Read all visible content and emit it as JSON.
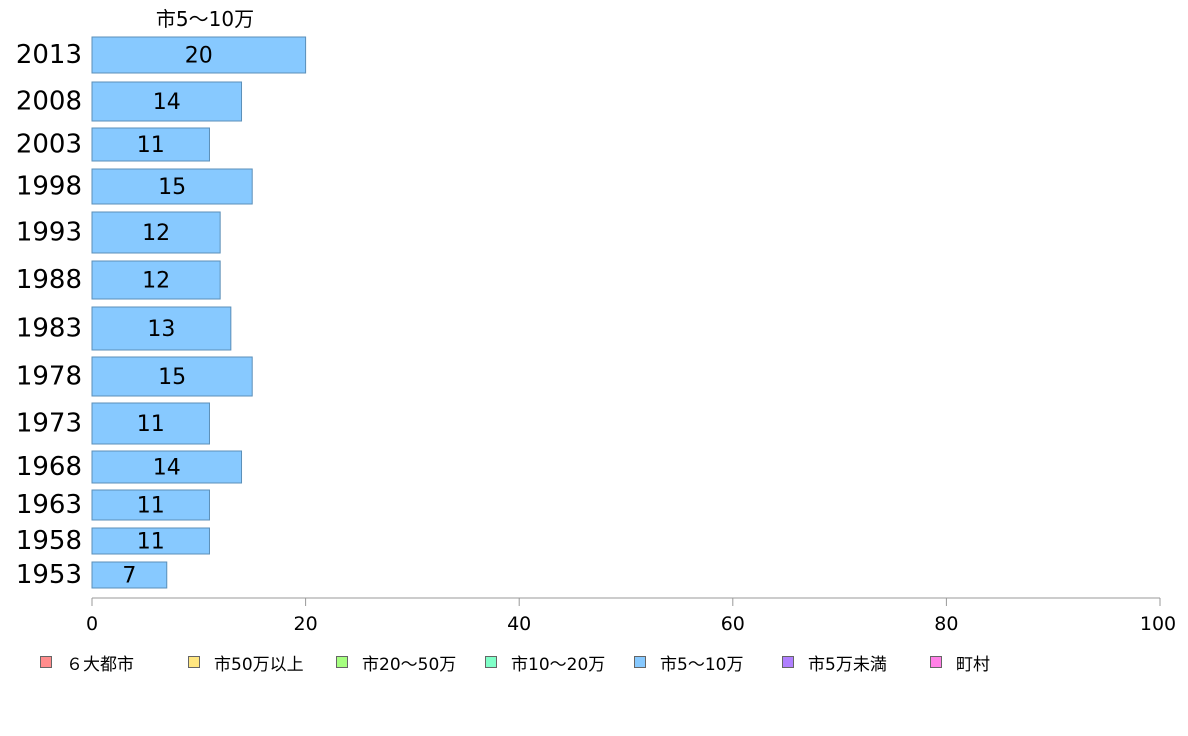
{
  "chart_data": {
    "type": "bar",
    "orientation": "horizontal",
    "top_label": "市5～10万",
    "categories": [
      "2013",
      "2008",
      "2003",
      "1998",
      "1993",
      "1988",
      "1983",
      "1978",
      "1973",
      "1968",
      "1963",
      "1958",
      "1953"
    ],
    "values": [
      20,
      14,
      11,
      15,
      12,
      12,
      13,
      15,
      11,
      14,
      11,
      11,
      7
    ],
    "xlim": [
      0,
      100
    ],
    "xticks": [
      0,
      20,
      40,
      60,
      80,
      100
    ],
    "grid": false,
    "bar_color": "#87c9ff",
    "bar_border_color": "#5b8fb8",
    "legend_position": "bottom",
    "legend": [
      {
        "label": "６大都市",
        "color": "#ff8c8c"
      },
      {
        "label": "市50万以上",
        "color": "#ffe680"
      },
      {
        "label": "市20～50万",
        "color": "#a6ff80"
      },
      {
        "label": "市10～20万",
        "color": "#80ffc8"
      },
      {
        "label": "市5～10万",
        "color": "#87c9ff"
      },
      {
        "label": "市5万未満",
        "color": "#b080ff"
      },
      {
        "label": "町村",
        "color": "#ff80e6"
      }
    ]
  }
}
